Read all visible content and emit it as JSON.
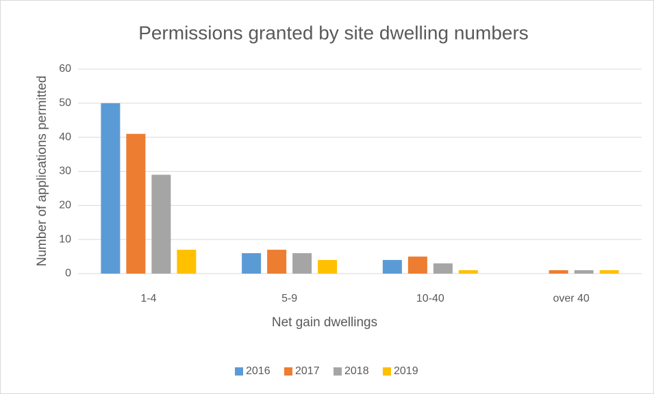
{
  "chart_data": {
    "type": "bar",
    "title": "Permissions granted by site dwelling numbers",
    "x_label": "Net gain dwellings",
    "y_label": "Number of applications permitted",
    "categories": [
      "1-4",
      "5-9",
      "10-40",
      "over 40"
    ],
    "series": [
      {
        "name": "2016",
        "color": "#5b9bd5",
        "values": [
          50,
          6,
          4,
          0
        ]
      },
      {
        "name": "2017",
        "color": "#ed7d31",
        "values": [
          41,
          7,
          5,
          1
        ]
      },
      {
        "name": "2018",
        "color": "#a5a5a5",
        "values": [
          29,
          6,
          3,
          1
        ]
      },
      {
        "name": "2019",
        "color": "#ffc000",
        "values": [
          7,
          4,
          1,
          1
        ]
      }
    ],
    "ylim": [
      0,
      60
    ],
    "yticks": [
      0,
      10,
      20,
      30,
      40,
      50,
      60
    ],
    "grid": true,
    "legend": "bottom"
  }
}
